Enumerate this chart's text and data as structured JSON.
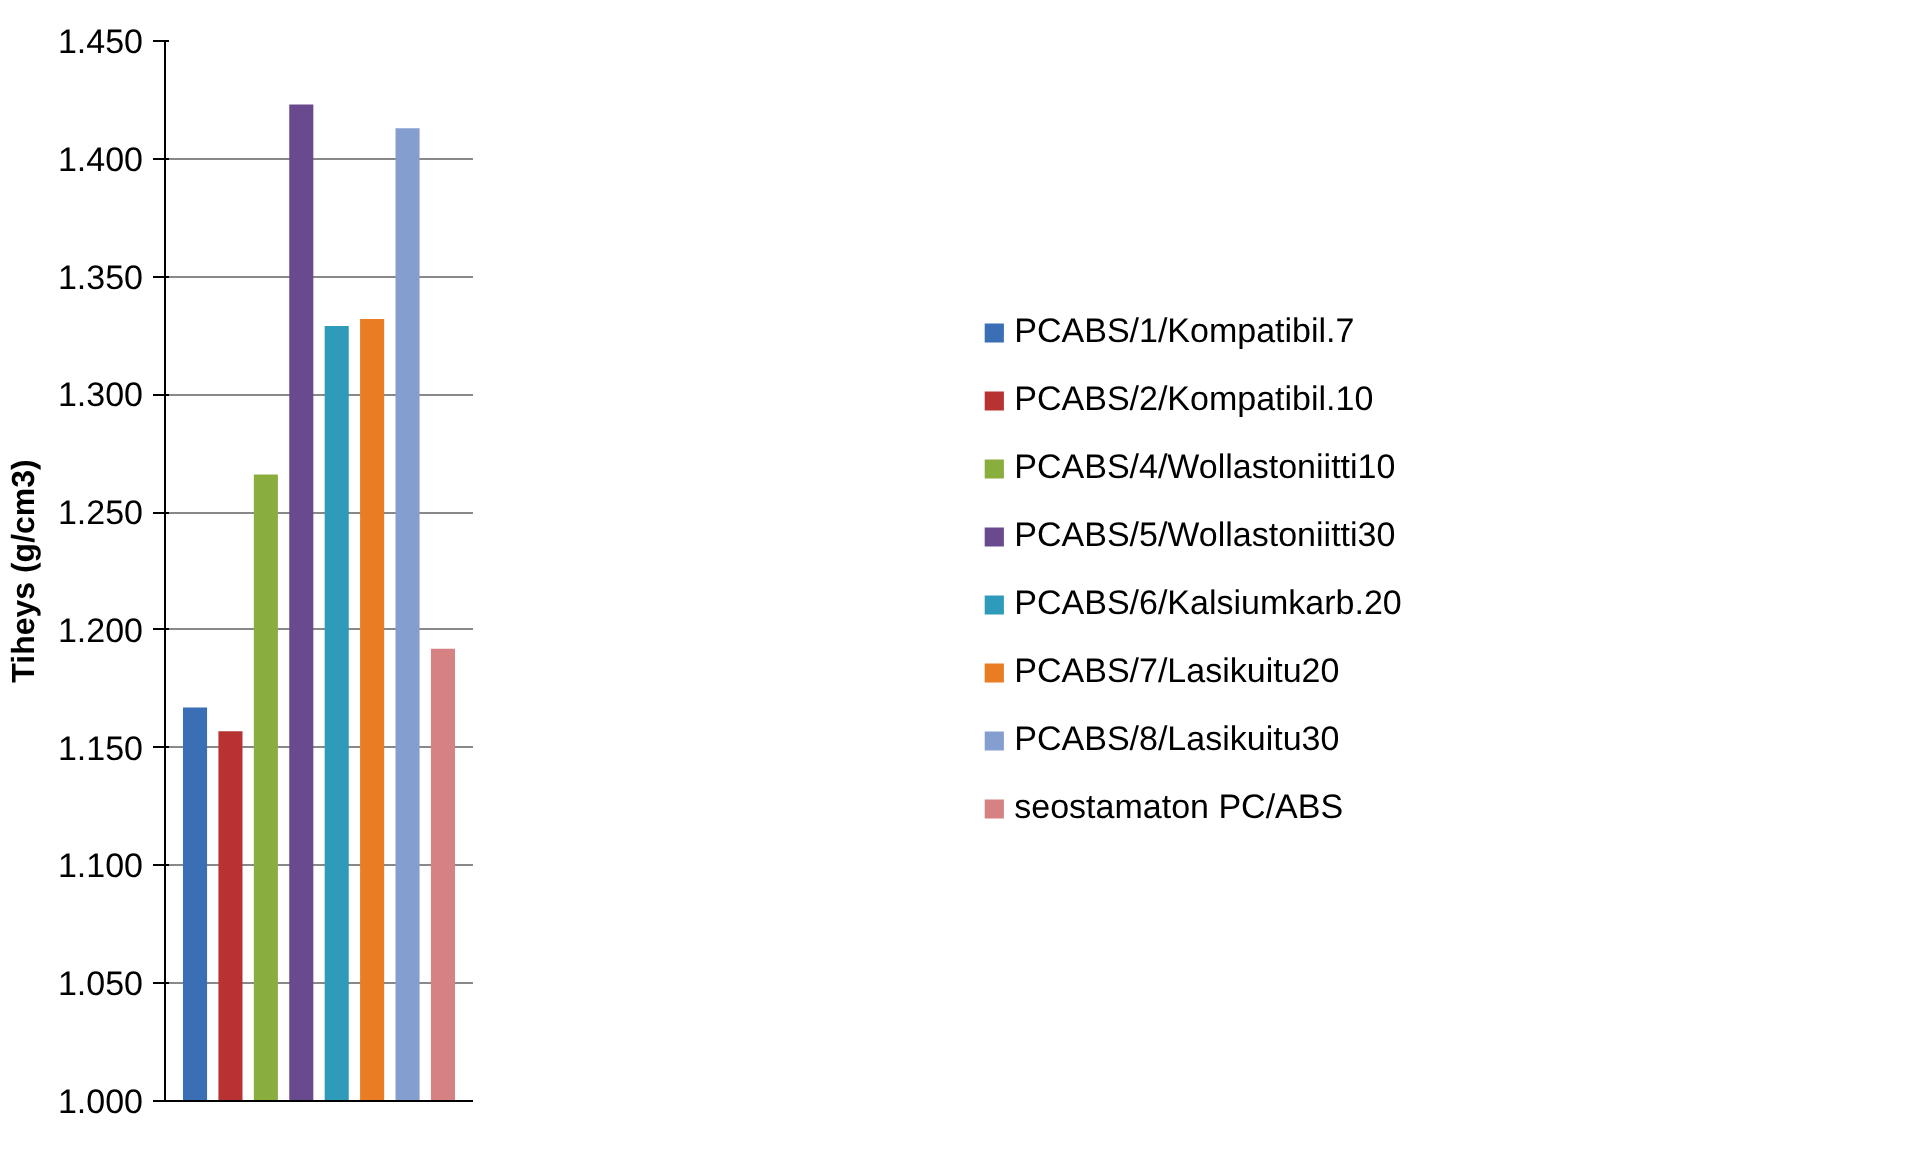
{
  "chart_data": {
    "type": "bar",
    "ylabel": "Tiheys (g/cm3)",
    "categories": [
      null
    ],
    "series": [
      {
        "name": "PCABS/1/Kompatibil.7",
        "color": "#3a6fb5",
        "values": [
          1.167
        ]
      },
      {
        "name": "PCABS/2/Kompatibil.10",
        "color": "#b83232",
        "values": [
          1.157
        ]
      },
      {
        "name": "PCABS/4/Wollastoniitti10",
        "color": "#8aae3e",
        "values": [
          1.266
        ]
      },
      {
        "name": "PCABS/5/Wollastoniitti30",
        "color": "#6a4a8e",
        "values": [
          1.423
        ]
      },
      {
        "name": "PCABS/6/Kalsiumkarb.20",
        "color": "#2e9bbb",
        "values": [
          1.329
        ]
      },
      {
        "name": "PCABS/7/Lasikuitu20",
        "color": "#ea7d24",
        "values": [
          1.332
        ]
      },
      {
        "name": "PCABS/8/Lasikuitu30",
        "color": "#849fcf",
        "values": [
          1.413
        ]
      },
      {
        "name": "seostamaton PC/ABS",
        "color": "#d68282",
        "values": [
          1.192
        ]
      }
    ],
    "ylim": [
      1.0,
      1.45
    ],
    "yticks": [
      {
        "value": 1.0,
        "label": "1.000"
      },
      {
        "value": 1.05,
        "label": "1.050"
      },
      {
        "value": 1.1,
        "label": "1.100"
      },
      {
        "value": 1.15,
        "label": "1.150"
      },
      {
        "value": 1.2,
        "label": "1.200"
      },
      {
        "value": 1.25,
        "label": "1.250"
      },
      {
        "value": 1.3,
        "label": "1.300"
      },
      {
        "value": 1.35,
        "label": "1.350"
      },
      {
        "value": 1.4,
        "label": "1.400"
      },
      {
        "value": 1.45,
        "label": "1.450"
      }
    ],
    "grid": "y",
    "legend": "right",
    "tick_labels": "y"
  }
}
